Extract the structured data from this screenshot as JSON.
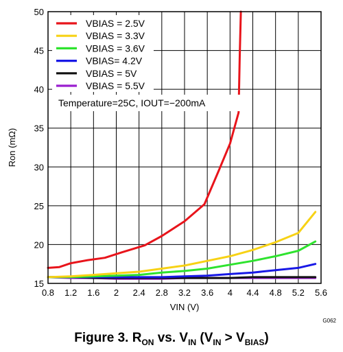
{
  "chart_data": {
    "type": "line",
    "xlabel": "VIN (V)",
    "ylabel": "Ron (mΩ)",
    "xlim": [
      0.8,
      5.6
    ],
    "ylim": [
      15,
      50
    ],
    "x_ticks": [
      "0.8",
      "1.2",
      "1.6",
      "2",
      "2.4",
      "2.8",
      "3.2",
      "3.6",
      "4",
      "4.4",
      "4.8",
      "5.2",
      "5.6"
    ],
    "y_ticks": [
      "15",
      "20",
      "25",
      "30",
      "35",
      "40",
      "45",
      "50"
    ],
    "grid": true,
    "legend_position": "top-left",
    "annotation": "Temperature=25C, IOUT=−200mA",
    "figure_code": "G062",
    "series": [
      {
        "name": "VBIAS = 2.5V",
        "color": "#e8141b",
        "x": [
          0.8,
          1.0,
          1.2,
          1.5,
          1.8,
          2.1,
          2.5,
          2.8,
          3.2,
          3.55,
          3.8,
          4.0,
          4.15,
          4.17,
          4.19
        ],
        "y": [
          17.0,
          17.1,
          17.6,
          18.0,
          18.3,
          19.0,
          19.9,
          21.1,
          23.0,
          25.2,
          29.5,
          33.0,
          37.0,
          44.0,
          50.0
        ]
      },
      {
        "name": "VBIAS = 3.3V",
        "color": "#f7d215",
        "x": [
          0.8,
          1.2,
          1.6,
          2.0,
          2.4,
          2.8,
          3.2,
          3.6,
          4.0,
          4.4,
          4.8,
          5.2,
          5.5
        ],
        "y": [
          15.8,
          15.9,
          16.1,
          16.3,
          16.5,
          16.9,
          17.3,
          17.9,
          18.5,
          19.3,
          20.3,
          21.5,
          24.2
        ]
      },
      {
        "name": "VBIAS = 3.6V",
        "color": "#2ee32e",
        "x": [
          0.8,
          1.2,
          1.6,
          2.0,
          2.4,
          2.8,
          3.2,
          3.6,
          4.0,
          4.4,
          4.8,
          5.2,
          5.5
        ],
        "y": [
          15.8,
          15.8,
          15.9,
          16.0,
          16.1,
          16.4,
          16.6,
          16.9,
          17.4,
          17.9,
          18.5,
          19.2,
          20.4
        ]
      },
      {
        "name": "VBIAS= 4.2V",
        "color": "#1818e6",
        "x": [
          0.8,
          1.2,
          1.6,
          2.0,
          2.4,
          2.8,
          3.2,
          3.6,
          4.0,
          4.4,
          4.8,
          5.2,
          5.5
        ],
        "y": [
          15.8,
          15.8,
          15.8,
          15.8,
          15.8,
          15.8,
          15.9,
          16.0,
          16.2,
          16.4,
          16.7,
          17.0,
          17.5
        ]
      },
      {
        "name": "VBIAS = 5V",
        "color": "#111111",
        "x": [
          0.8,
          1.2,
          1.6,
          2.0,
          2.4,
          2.8,
          3.2,
          3.6,
          4.0,
          4.4,
          4.8,
          5.2,
          5.5
        ],
        "y": [
          15.8,
          15.8,
          15.7,
          15.7,
          15.7,
          15.7,
          15.7,
          15.7,
          15.7,
          15.8,
          15.8,
          15.8,
          15.8
        ]
      },
      {
        "name": "VBIAS = 5.5V",
        "color": "#9a1ecf",
        "x": [
          0.8,
          1.2,
          1.6,
          2.0,
          2.4,
          2.8,
          3.2,
          3.6,
          4.0,
          4.4,
          4.8,
          5.2,
          5.5
        ],
        "y": [
          15.8,
          15.7,
          15.7,
          15.6,
          15.6,
          15.6,
          15.7,
          15.7,
          15.7,
          15.7,
          15.7,
          15.7,
          15.7
        ]
      }
    ]
  },
  "caption": {
    "prefix": "Figure 3.  R",
    "ron_sub": "ON",
    "vs": " vs. V",
    "vin_sub": "IN",
    "paren_open": " (V",
    "vin_sub2": "IN",
    "gt": " > V",
    "bias_sub": "BIAS",
    "paren_close": ")"
  }
}
